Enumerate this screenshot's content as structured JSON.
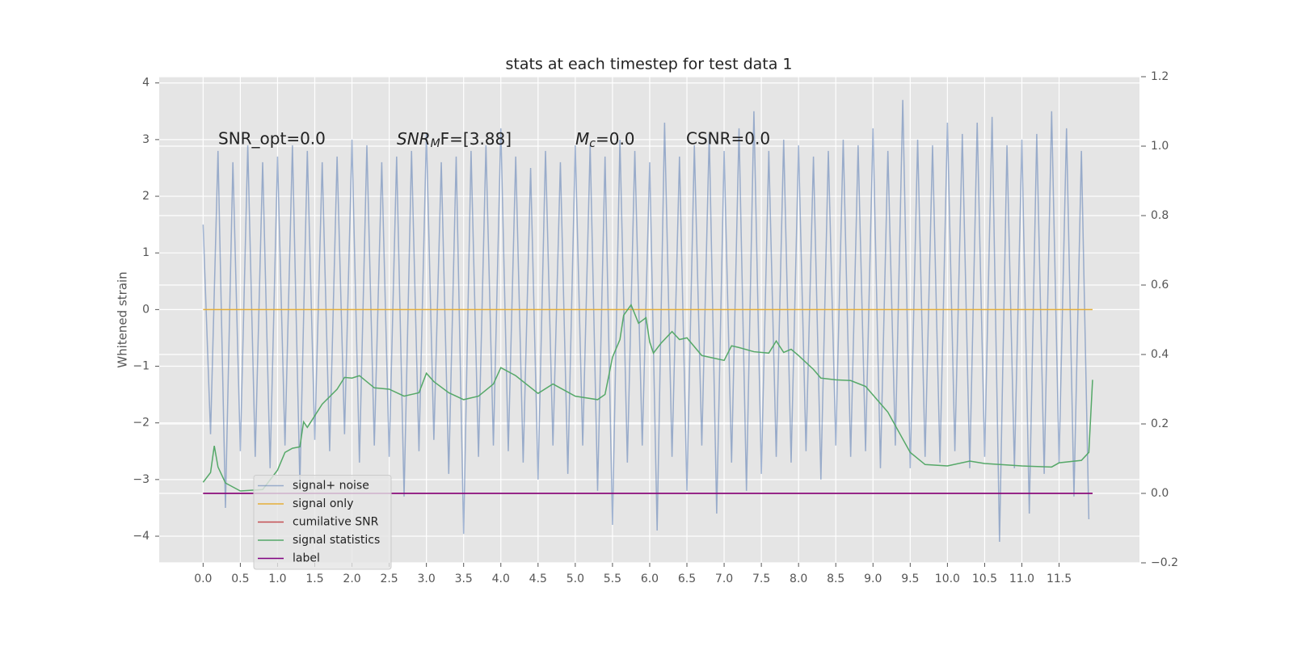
{
  "chart_data": {
    "type": "line",
    "title": "stats at each timestep for test data 1",
    "ylabel": "Whitened strain",
    "annotations": [
      {
        "text": "SNR_opt=0.0"
      },
      {
        "base": "SNR",
        "sub": "M",
        "rest": "F=[3.88]"
      },
      {
        "base": "M",
        "sub": "c",
        "rest": "=0.0"
      },
      {
        "text": "CSNR=0.0"
      }
    ],
    "xlim": [
      -0.59,
      12.58
    ],
    "xticks": [
      {
        "value": 0,
        "label": "0.0"
      },
      0.5,
      {
        "value": 1,
        "label": "1.0"
      },
      1.5,
      {
        "value": 2,
        "label": "2.0"
      },
      2.5,
      {
        "value": 3,
        "label": "3.0"
      },
      3.5,
      {
        "value": 4,
        "label": "4.0"
      },
      4.5,
      {
        "value": 5,
        "label": "5.0"
      },
      5.5,
      {
        "value": 6,
        "label": "6.0"
      },
      6.5,
      {
        "value": 7,
        "label": "7.0"
      },
      7.5,
      {
        "value": 8,
        "label": "8.0"
      },
      8.5,
      {
        "value": 9,
        "label": "9.0"
      },
      9.5,
      {
        "value": 10,
        "label": "10.0"
      },
      10.5,
      {
        "value": 11,
        "label": "11.0"
      },
      11.5
    ],
    "ylim": [
      -4.47,
      4.11
    ],
    "yticks": [
      {
        "value": -4,
        "label": "−4"
      },
      {
        "value": -3,
        "label": "−3"
      },
      {
        "value": -2,
        "label": "−2"
      },
      {
        "value": -1,
        "label": "−1"
      },
      0,
      1,
      2,
      3,
      4
    ],
    "y2lim": [
      -0.2,
      1.2
    ],
    "y2ticks": [
      {
        "value": -0.2,
        "label": "−0.2"
      },
      {
        "value": 0,
        "label": "0.0"
      },
      0.2,
      0.4,
      0.6,
      0.8,
      {
        "value": 1,
        "label": "1.0"
      },
      1.2
    ],
    "grid": true,
    "legend": "lower left",
    "series": [
      {
        "name": "signal+ noise",
        "color": "#4c72b0",
        "alpha": 0.5,
        "x": [
          0.0,
          0.1,
          0.2,
          0.3,
          0.4,
          0.5,
          0.6,
          0.7,
          0.8,
          0.9,
          1.0,
          1.1,
          1.2,
          1.3,
          1.4,
          1.5,
          1.6,
          1.7,
          1.8,
          1.9,
          2.0,
          2.1,
          2.2,
          2.3,
          2.4,
          2.5,
          2.6,
          2.7,
          2.8,
          2.9,
          3.0,
          3.1,
          3.2,
          3.3,
          3.4,
          3.5,
          3.6,
          3.7,
          3.8,
          3.9,
          4.0,
          4.1,
          4.2,
          4.3,
          4.4,
          4.5,
          4.6,
          4.7,
          4.8,
          4.9,
          5.0,
          5.1,
          5.2,
          5.3,
          5.4,
          5.5,
          5.6,
          5.7,
          5.8,
          5.9,
          6.0,
          6.1,
          6.2,
          6.3,
          6.4,
          6.5,
          6.6,
          6.7,
          6.8,
          6.9,
          7.0,
          7.1,
          7.2,
          7.3,
          7.4,
          7.5,
          7.6,
          7.7,
          7.8,
          7.9,
          8.0,
          8.1,
          8.2,
          8.3,
          8.4,
          8.5,
          8.6,
          8.7,
          8.8,
          8.9,
          9.0,
          9.1,
          9.2,
          9.3,
          9.4,
          9.5,
          9.6,
          9.7,
          9.8,
          9.9,
          10.0,
          10.1,
          10.2,
          10.3,
          10.4,
          10.5,
          10.6,
          10.7,
          10.8,
          10.9,
          11.0,
          11.1,
          11.2,
          11.3,
          11.4,
          11.5,
          11.6,
          11.7,
          11.8,
          11.9
        ],
        "values": [
          1.5,
          -2.2,
          2.8,
          -3.5,
          2.6,
          -2.5,
          2.9,
          -2.6,
          2.6,
          -2.8,
          2.7,
          -2.4,
          2.9,
          -3.1,
          2.8,
          -2.3,
          2.6,
          -2.5,
          2.7,
          -2.2,
          3.0,
          -2.7,
          2.9,
          -2.4,
          2.6,
          -2.6,
          2.7,
          -3.3,
          2.8,
          -2.5,
          3.1,
          -2.3,
          2.6,
          -2.9,
          2.7,
          -3.96,
          2.8,
          -2.6,
          2.9,
          -2.4,
          3.2,
          -2.5,
          2.7,
          -2.7,
          2.5,
          -3.0,
          2.8,
          -2.4,
          2.6,
          -2.9,
          2.9,
          -2.4,
          2.9,
          -3.2,
          2.7,
          -3.8,
          3.0,
          -2.7,
          2.8,
          -2.4,
          2.6,
          -3.9,
          3.3,
          -2.6,
          2.7,
          -3.2,
          2.9,
          -2.4,
          3.1,
          -3.6,
          2.8,
          -2.7,
          3.2,
          -3.2,
          3.5,
          -2.9,
          2.8,
          -2.6,
          3.0,
          -2.7,
          2.9,
          -2.5,
          2.7,
          -3.0,
          2.8,
          -2.4,
          3.0,
          -2.6,
          2.9,
          -2.5,
          3.2,
          -2.8,
          2.8,
          -2.4,
          3.7,
          -2.8,
          3.0,
          -2.6,
          2.9,
          -2.7,
          3.3,
          -2.5,
          3.1,
          -2.8,
          3.3,
          -2.6,
          3.4,
          -4.1,
          2.9,
          -2.8,
          3.0,
          -3.6,
          3.1,
          -2.9,
          3.5,
          -2.7,
          3.2,
          -3.3,
          2.8,
          -3.7
        ]
      },
      {
        "name": "signal only",
        "color": "#e5ae38",
        "x": [
          0,
          11.95
        ],
        "values": [
          0,
          0
        ]
      },
      {
        "name": "cumilative SNR",
        "color": "#c44e52",
        "axis": "y2",
        "x": [
          0,
          11.95
        ],
        "values": [
          0,
          0
        ]
      },
      {
        "name": "signal statistics",
        "color": "#55a868",
        "axis": "y2",
        "x": [
          0.0,
          0.1,
          0.15,
          0.2,
          0.3,
          0.5,
          0.8,
          1.0,
          1.1,
          1.2,
          1.3,
          1.35,
          1.4,
          1.6,
          1.8,
          1.9,
          2.0,
          2.1,
          2.3,
          2.5,
          2.7,
          2.9,
          3.0,
          3.1,
          3.3,
          3.5,
          3.7,
          3.9,
          4.0,
          4.2,
          4.5,
          4.7,
          5.0,
          5.3,
          5.4,
          5.5,
          5.6,
          5.65,
          5.75,
          5.85,
          5.95,
          6.0,
          6.05,
          6.15,
          6.3,
          6.4,
          6.5,
          6.7,
          7.0,
          7.1,
          7.2,
          7.4,
          7.6,
          7.7,
          7.8,
          7.9,
          8.0,
          8.2,
          8.3,
          8.5,
          8.7,
          8.9,
          9.2,
          9.5,
          9.7,
          10.0,
          10.3,
          10.5,
          11.0,
          11.4,
          11.5,
          11.8,
          11.9,
          11.95
        ],
        "values": [
          0.032,
          0.06,
          0.137,
          0.076,
          0.03,
          0.007,
          0.011,
          0.067,
          0.118,
          0.13,
          0.134,
          0.206,
          0.19,
          0.257,
          0.3,
          0.334,
          0.332,
          0.339,
          0.304,
          0.3,
          0.28,
          0.29,
          0.346,
          0.322,
          0.29,
          0.27,
          0.28,
          0.315,
          0.362,
          0.339,
          0.288,
          0.315,
          0.28,
          0.27,
          0.285,
          0.392,
          0.443,
          0.513,
          0.543,
          0.49,
          0.506,
          0.436,
          0.404,
          0.432,
          0.466,
          0.443,
          0.448,
          0.397,
          0.383,
          0.425,
          0.42,
          0.408,
          0.404,
          0.439,
          0.406,
          0.415,
          0.397,
          0.357,
          0.332,
          0.327,
          0.325,
          0.308,
          0.234,
          0.118,
          0.083,
          0.079,
          0.093,
          0.086,
          0.079,
          0.076,
          0.088,
          0.095,
          0.118,
          0.327
        ]
      },
      {
        "name": "label",
        "color": "#800080",
        "axis": "y2",
        "x": [
          0,
          11.95
        ],
        "values": [
          0,
          0
        ]
      }
    ]
  }
}
